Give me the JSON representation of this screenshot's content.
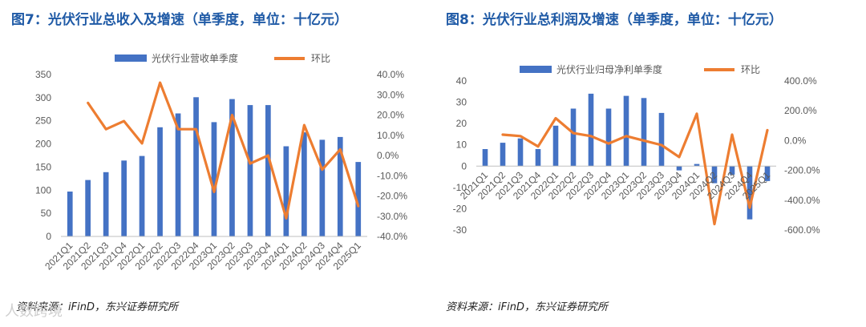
{
  "colors": {
    "bar": "#4472c4",
    "line": "#ed7d31",
    "title": "#1f5aa6"
  },
  "watermark": "人数跨境",
  "chart_data": [
    {
      "type": "bar+line",
      "title": "图7：光伏行业总收入及增速（单季度，单位：十亿元）",
      "source": "资料来源：iFinD，东兴证券研究所",
      "categories": [
        "2021Q1",
        "2021Q2",
        "2021Q3",
        "2021Q4",
        "2022Q1",
        "2022Q2",
        "2022Q3",
        "2022Q4",
        "2023Q1",
        "2023Q2",
        "2023Q3",
        "2023Q4",
        "2024Q1",
        "2024Q2",
        "2024Q3",
        "2024Q4",
        "2025Q1"
      ],
      "legend": [
        "光伏行业营收单季度",
        "环比"
      ],
      "series": [
        {
          "name": "光伏行业营收单季度",
          "type": "bar",
          "axis": "left",
          "values": [
            97,
            122,
            139,
            164,
            174,
            236,
            266,
            301,
            247,
            297,
            284,
            284,
            195,
            225,
            209,
            215,
            161
          ]
        },
        {
          "name": "环比",
          "type": "line",
          "axis": "right",
          "values": [
            null,
            26,
            13,
            17,
            6,
            36,
            13,
            13,
            -18,
            20,
            -4,
            0,
            -31,
            15,
            -7,
            3,
            -25
          ]
        }
      ],
      "yLeft": {
        "min": 0,
        "max": 350,
        "step": 50,
        "ticks": [
          "0",
          "50",
          "100",
          "150",
          "200",
          "250",
          "300",
          "350"
        ]
      },
      "yRight": {
        "min": -40,
        "max": 40,
        "step": 10,
        "ticks": [
          "-40.0%",
          "-30.0%",
          "-20.0%",
          "-10.0%",
          "0.0%",
          "10.0%",
          "20.0%",
          "30.0%",
          "40.0%"
        ]
      }
    },
    {
      "type": "bar+line",
      "title": "图8：光伏行业总利润及增速（单季度，单位：十亿元）",
      "source": "资料来源：iFinD，东兴证券研究所",
      "categories": [
        "2021Q1",
        "2021Q2",
        "2021Q3",
        "2021Q4",
        "2022Q1",
        "2022Q2",
        "2022Q3",
        "2022Q4",
        "2023Q1",
        "2023Q2",
        "2023Q3",
        "2023Q4",
        "2024Q1",
        "2024Q2",
        "2024Q3",
        "2024Q4",
        "2025Q1"
      ],
      "legend": [
        "光伏行业归母净利单季度",
        "环比"
      ],
      "series": [
        {
          "name": "光伏行业归母净利单季度",
          "type": "bar",
          "axis": "left",
          "values": [
            8,
            11,
            13,
            8,
            19,
            27,
            34,
            27,
            33,
            32,
            25,
            -2,
            1,
            -8,
            -4,
            -25,
            -7
          ]
        },
        {
          "name": "环比",
          "type": "line",
          "axis": "right",
          "values": [
            null,
            40,
            30,
            -40,
            150,
            50,
            30,
            -20,
            30,
            0,
            -30,
            -110,
            180,
            -560,
            40,
            -450,
            70
          ]
        }
      ],
      "yLeft": {
        "min": -30,
        "max": 40,
        "step": 10,
        "ticks": [
          "-30",
          "-20",
          "-10",
          "0",
          "10",
          "20",
          "30",
          "40"
        ]
      },
      "yRight": {
        "min": -600,
        "max": 400,
        "step": 200,
        "ticks": [
          "-600.0%",
          "-400.0%",
          "-200.0%",
          "0.0%",
          "200.0%",
          "400.0%"
        ]
      }
    }
  ]
}
